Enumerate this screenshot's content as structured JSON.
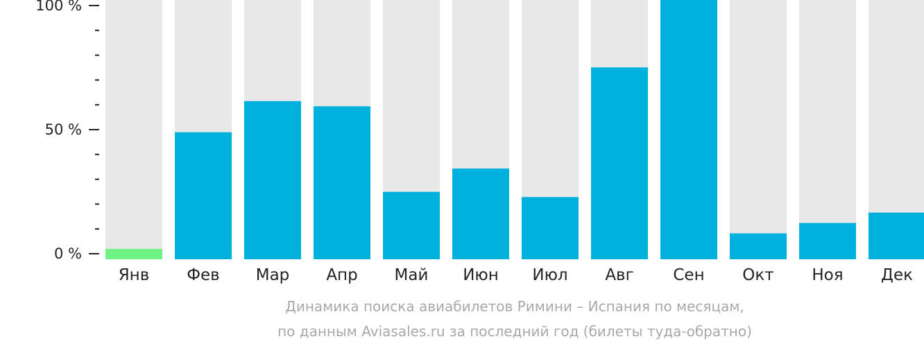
{
  "chart_data": {
    "type": "bar",
    "categories": [
      "Янв",
      "Фев",
      "Мар",
      "Апр",
      "Май",
      "Июн",
      "Июл",
      "Авг",
      "Сен",
      "Окт",
      "Ноя",
      "Дек"
    ],
    "values": [
      4,
      49,
      61,
      59,
      26,
      35,
      24,
      74,
      100,
      10,
      14,
      18
    ],
    "highlight_index": 0,
    "ylim": [
      0,
      100
    ],
    "yticks": [
      "0 %",
      "50 %",
      "100 %"
    ],
    "caption_line1": "Динамика поиска авиабилетов Римини – Испания по месяцам,",
    "caption_line2": "по данным Aviasales.ru за последний год (билеты туда-обратно)"
  },
  "colors": {
    "bar": "#00b0dd",
    "highlight": "#6ef283",
    "track": "#e8e8e8",
    "axis": "#222222",
    "caption": "#a8a8a8"
  }
}
